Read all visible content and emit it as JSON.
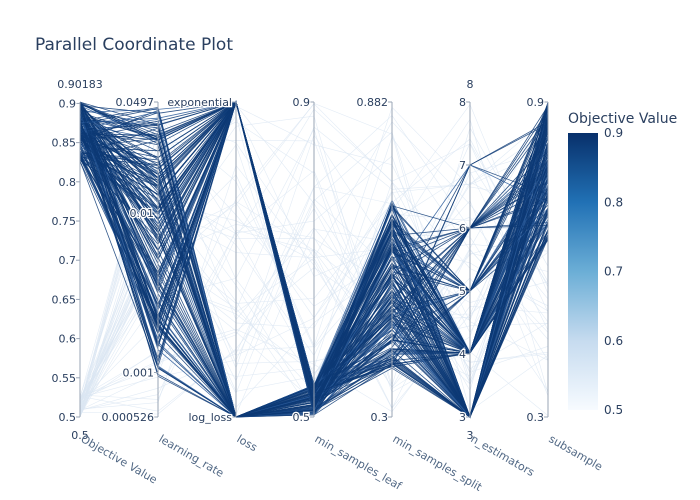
{
  "chart_data": {
    "type": "parallel_coordinates",
    "title": "Parallel Coordinate Plot",
    "axes": [
      {
        "name": "Objective Value",
        "range_labels": {
          "top": "0.90183",
          "bottom": "0.5"
        },
        "ticks": [
          "0.5",
          "0.55",
          "0.6",
          "0.65",
          "0.7",
          "0.75",
          "0.8",
          "0.85",
          "0.9"
        ]
      },
      {
        "name": "learning_rate",
        "scale": "log",
        "range_labels": {
          "top": "0.0497",
          "bottom": "0.000526"
        },
        "ticks": [
          "0.001",
          "0.01"
        ]
      },
      {
        "name": "loss",
        "categories": [
          "log_loss",
          "exponential"
        ]
      },
      {
        "name": "min_samples_leaf",
        "range_labels": {
          "top": "0.9",
          "bottom": "0.5"
        },
        "ticks": []
      },
      {
        "name": "min_samples_split",
        "range_labels": {
          "top": "0.882",
          "bottom": "0.3"
        },
        "ticks": []
      },
      {
        "name": "n_estimators",
        "range_labels": {
          "top": "8",
          "bottom": "3"
        },
        "ticks": [
          "3",
          "4",
          "5",
          "6",
          "7",
          "8"
        ]
      },
      {
        "name": "subsample",
        "range_labels": {
          "top": "0.9",
          "bottom": "0.3"
        },
        "ticks": []
      }
    ],
    "colorbar": {
      "title": "Objective Value",
      "ticks": [
        "0.5",
        "0.6",
        "0.7",
        "0.8",
        "0.9"
      ],
      "range": [
        0.5,
        0.9
      ],
      "colors": [
        "#f7fbff",
        "#c6dbef",
        "#6baed6",
        "#2171b5",
        "#08306b"
      ]
    }
  }
}
